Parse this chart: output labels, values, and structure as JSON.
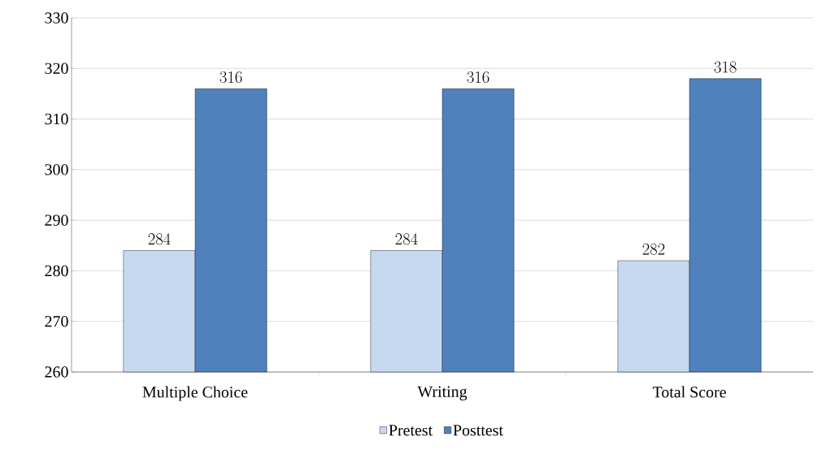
{
  "chart_data": {
    "type": "bar",
    "categories": [
      "Multiple Choice",
      "Writing",
      "Total Score"
    ],
    "series": [
      {
        "name": "Pretest",
        "color": "#c6d9f1",
        "values": [
          284,
          284,
          282
        ]
      },
      {
        "name": "Posttest",
        "color": "#4f81bd",
        "values": [
          316,
          316,
          318
        ]
      }
    ],
    "ylim": [
      260,
      330
    ],
    "yticks": [
      260,
      270,
      280,
      290,
      300,
      310,
      320,
      330
    ],
    "grid": "y",
    "data_labels": true,
    "legend": "bottom"
  }
}
